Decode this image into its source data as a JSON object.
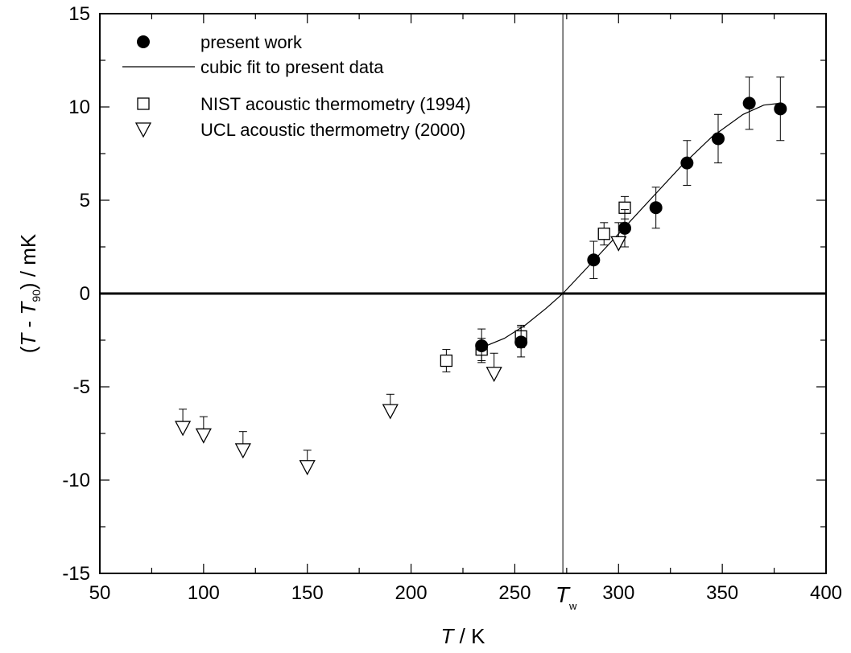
{
  "chart_data": {
    "type": "scatter",
    "xlim": [
      50,
      400
    ],
    "ylim": [
      -15,
      15
    ],
    "x_ticks": [
      50,
      100,
      150,
      200,
      250,
      300,
      350,
      400
    ],
    "y_ticks": [
      -15,
      -10,
      -5,
      0,
      5,
      10,
      15
    ],
    "x_tick_labels": [
      "50",
      "100",
      "150",
      "200",
      "250",
      "300",
      "350",
      "400"
    ],
    "y_tick_labels": [
      "-15",
      "-10",
      "-5",
      "0",
      "5",
      "10",
      "15"
    ],
    "xlabel": {
      "symbol": "T",
      "rest": " / K"
    },
    "ylabel": {
      "open": "(",
      "sym1": "T",
      "minus": " - ",
      "sym2": "T",
      "sub": "90",
      "close": ") / mK"
    },
    "grid": false,
    "legend_position": "top-left",
    "reference_line": {
      "x": 273.16,
      "label": "T",
      "label_sub": "w"
    },
    "zero_line": true,
    "series": [
      {
        "name": "present work",
        "marker": "filled-circle",
        "points": [
          {
            "x": 234,
            "y": -2.8,
            "err": 0.9
          },
          {
            "x": 253,
            "y": -2.6,
            "err": 0.8
          },
          {
            "x": 288,
            "y": 1.8,
            "err": 1.0
          },
          {
            "x": 303,
            "y": 3.5,
            "err": 1.0
          },
          {
            "x": 318,
            "y": 4.6,
            "err": 1.1
          },
          {
            "x": 333,
            "y": 7.0,
            "err": 1.2
          },
          {
            "x": 348,
            "y": 8.3,
            "err": 1.3
          },
          {
            "x": 363,
            "y": 10.2,
            "err": 1.4
          },
          {
            "x": 378,
            "y": 9.9,
            "err": 1.7
          }
        ]
      },
      {
        "name": "cubic fit to present data",
        "marker": "line",
        "points": [
          {
            "x": 234,
            "y": -2.9
          },
          {
            "x": 245,
            "y": -2.4
          },
          {
            "x": 255,
            "y": -1.7
          },
          {
            "x": 265,
            "y": -0.8
          },
          {
            "x": 273.16,
            "y": 0
          },
          {
            "x": 285,
            "y": 1.4
          },
          {
            "x": 300,
            "y": 3.2
          },
          {
            "x": 315,
            "y": 5.0
          },
          {
            "x": 330,
            "y": 6.8
          },
          {
            "x": 345,
            "y": 8.4
          },
          {
            "x": 360,
            "y": 9.6
          },
          {
            "x": 370,
            "y": 10.1
          },
          {
            "x": 378,
            "y": 10.2
          }
        ]
      },
      {
        "name": "NIST acoustic thermometry (1994)",
        "marker": "open-square",
        "points": [
          {
            "x": 217,
            "y": -3.6,
            "err": 0.6
          },
          {
            "x": 234,
            "y": -3.0,
            "err": 0.6
          },
          {
            "x": 253,
            "y": -2.3,
            "err": 0.6
          },
          {
            "x": 293,
            "y": 3.2,
            "err": 0.6
          },
          {
            "x": 303,
            "y": 4.6,
            "err": 0.6
          }
        ]
      },
      {
        "name": "UCL acoustic thermometry (2000)",
        "marker": "open-triangle-down",
        "points": [
          {
            "x": 90,
            "y": -7.2,
            "err": 1.0
          },
          {
            "x": 100,
            "y": -7.6,
            "err": 1.0
          },
          {
            "x": 119,
            "y": -8.4,
            "err": 1.0
          },
          {
            "x": 150,
            "y": -9.3,
            "err": 0.9
          },
          {
            "x": 190,
            "y": -6.3,
            "err": 0.9
          },
          {
            "x": 240,
            "y": -4.3,
            "err": 1.1
          },
          {
            "x": 300,
            "y": 2.7,
            "err": 1.1
          }
        ]
      }
    ]
  }
}
